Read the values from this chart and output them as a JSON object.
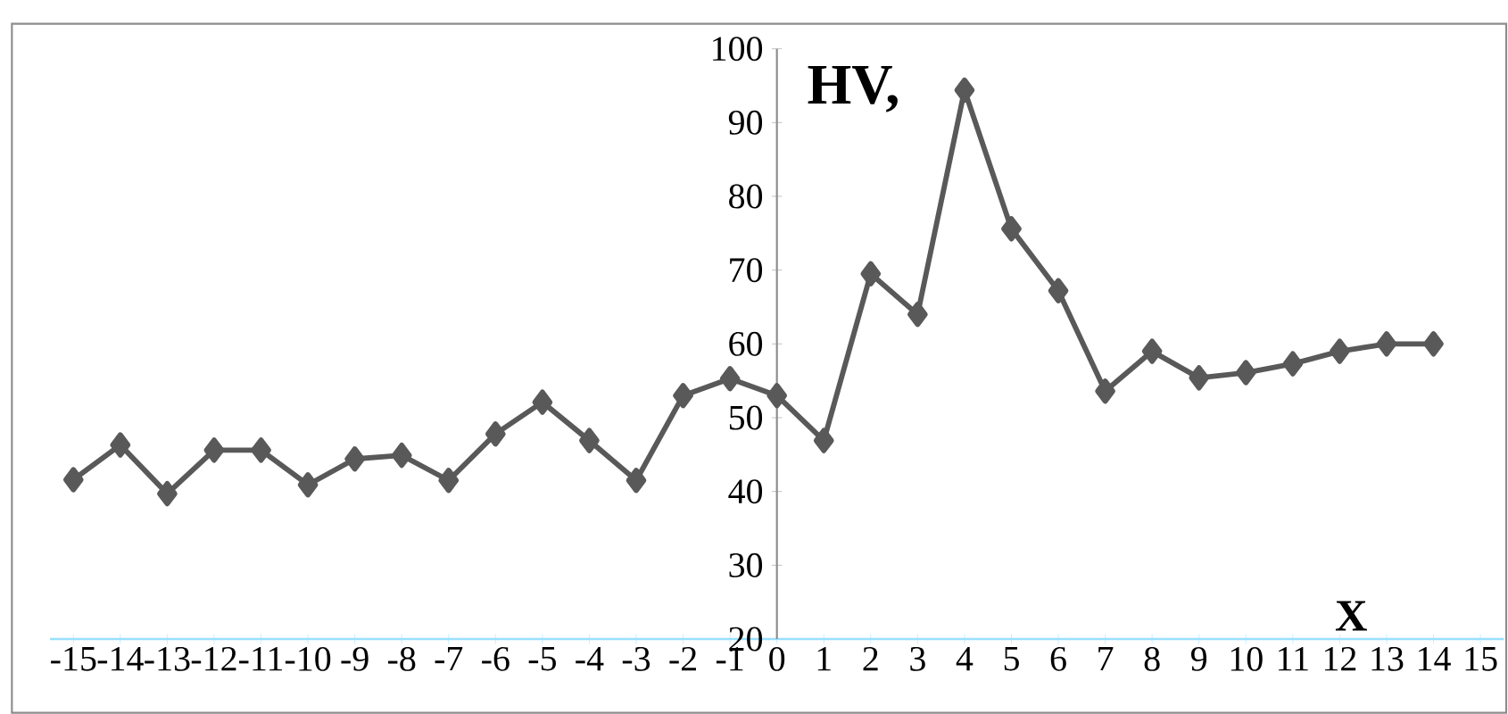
{
  "chart_data": {
    "type": "line",
    "xlabel": "X",
    "ylabel": "HV,",
    "x": [
      -15,
      -14,
      -13,
      -12,
      -11,
      -10,
      -9,
      -8,
      -7,
      -6,
      -5,
      -4,
      -3,
      -2,
      -1,
      0,
      1,
      2,
      3,
      4,
      5,
      6,
      7,
      8,
      9,
      10,
      11,
      12,
      13,
      14
    ],
    "series": [
      {
        "color": "#595959",
        "values": [
          41.6,
          46.3,
          39.7,
          45.6,
          45.6,
          40.9,
          44.4,
          44.9,
          41.5,
          47.8,
          52.1,
          46.9,
          41.5,
          53.0,
          55.3,
          53.0,
          46.9,
          69.5,
          64.0,
          94.4,
          75.6,
          67.2,
          53.6,
          59.0,
          55.4,
          56.1,
          57.3,
          59.0,
          60.0,
          60.0
        ]
      }
    ],
    "xlim": [
      -15.5,
      15.5
    ],
    "ylim": [
      20,
      100
    ],
    "xticks": [
      -15,
      -14,
      -13,
      -12,
      -11,
      -10,
      -9,
      -8,
      -7,
      -6,
      -5,
      -4,
      -3,
      -2,
      -1,
      0,
      1,
      2,
      3,
      4,
      5,
      6,
      7,
      8,
      9,
      10,
      11,
      12,
      13,
      14,
      15
    ],
    "yticks": [
      20,
      30,
      40,
      50,
      60,
      70,
      80,
      90,
      100
    ],
    "marker": "diamond",
    "line_style": "solid",
    "grid": false
  }
}
